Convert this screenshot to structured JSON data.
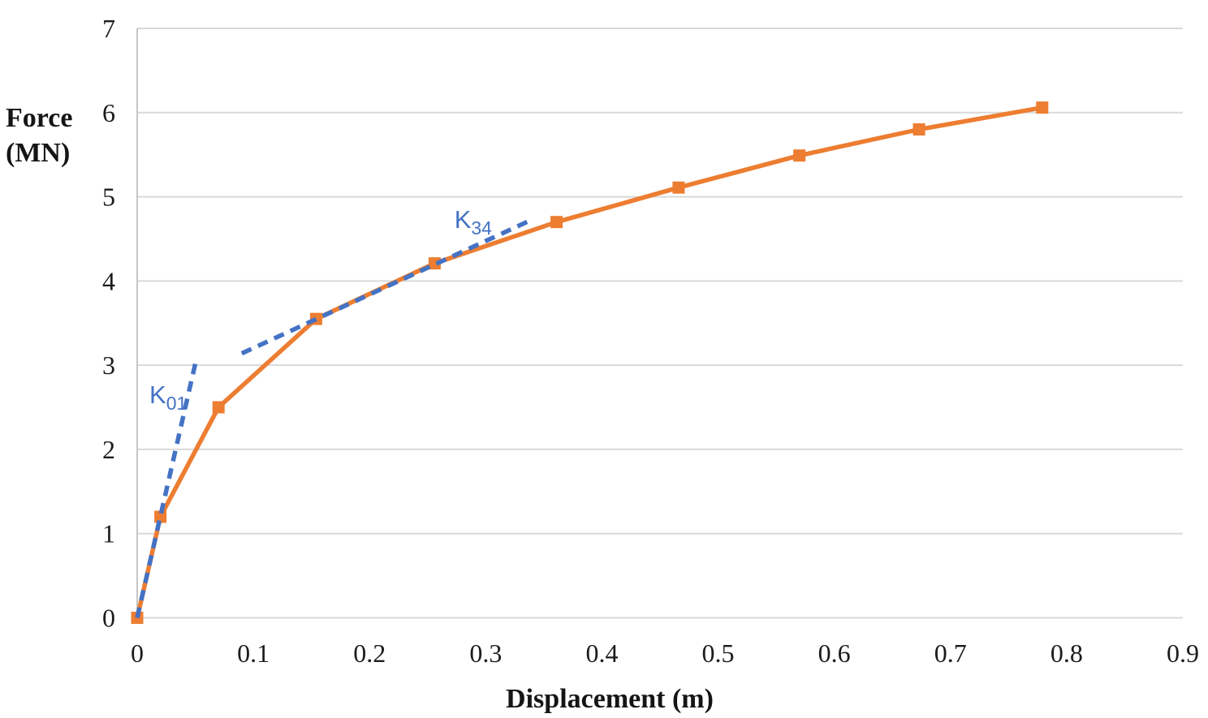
{
  "chart_data": {
    "type": "line",
    "title": "",
    "xlabel": "Displacement (m)",
    "ylabel": "Force (MN)",
    "ylabel_lines": [
      "Force",
      "(MN)"
    ],
    "xlim": [
      0,
      0.9
    ],
    "ylim": [
      0,
      7
    ],
    "x_ticks": [
      0,
      0.1,
      0.2,
      0.3,
      0.4,
      0.5,
      0.6,
      0.7,
      0.8,
      0.9
    ],
    "x_tick_labels": [
      "0",
      "0.1",
      "0.2",
      "0.3",
      "0.4",
      "0.5",
      "0.6",
      "0.7",
      "0.8",
      "0.9"
    ],
    "y_ticks": [
      0,
      1,
      2,
      3,
      4,
      5,
      6,
      7
    ],
    "y_tick_labels": [
      "0",
      "1",
      "2",
      "3",
      "4",
      "5",
      "6",
      "7"
    ],
    "grid": "horizontal",
    "legend": "none",
    "colors": {
      "curve": "#ED7D31",
      "stiffness_lines": "#4472C4",
      "gridline": "#D9D9D9",
      "axis_line": "#C6C6C6",
      "tick_text": "#1C1C1C"
    },
    "series": [
      {
        "name": "force-displacement-curve",
        "color": "#ED7D31",
        "style": "solid",
        "marker": "square",
        "points": [
          [
            0,
            0
          ],
          [
            0.02,
            1.2
          ],
          [
            0.07,
            2.5
          ],
          [
            0.154,
            3.55
          ],
          [
            0.256,
            4.21
          ],
          [
            0.361,
            4.7
          ],
          [
            0.466,
            5.11
          ],
          [
            0.57,
            5.49
          ],
          [
            0.673,
            5.8
          ],
          [
            0.779,
            6.06
          ]
        ]
      },
      {
        "name": "K01-initial-stiffness-line",
        "color": "#4472C4",
        "style": "dashed",
        "marker": "none",
        "points": [
          [
            0,
            0
          ],
          [
            0.05,
            3.02
          ]
        ]
      },
      {
        "name": "K34-secant-stiffness-line",
        "color": "#4472C4",
        "style": "dashed",
        "marker": "none",
        "points": [
          [
            0.09,
            3.14
          ],
          [
            0.34,
            4.73
          ]
        ]
      }
    ],
    "annotations": [
      {
        "name": "K01-label",
        "main": "K",
        "sub": "01",
        "x": 0.0105,
        "y": 2.55,
        "color": "#4472C4"
      },
      {
        "name": "K34-label",
        "main": "K",
        "sub": "34",
        "x": 0.273,
        "y": 4.63,
        "color": "#4472C4"
      }
    ]
  }
}
